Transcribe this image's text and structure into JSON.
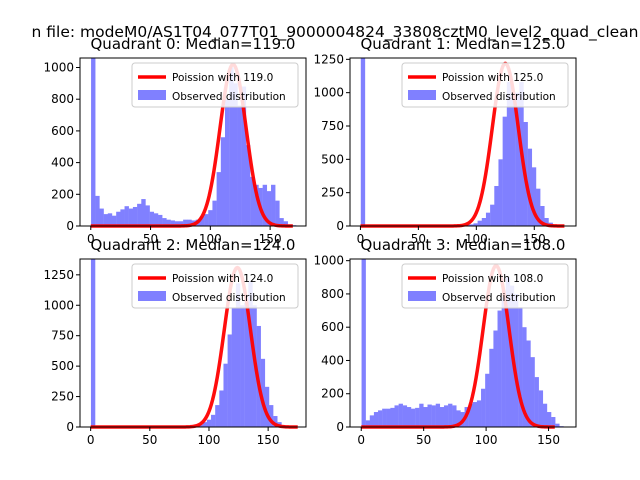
{
  "figure": {
    "suptitle": "n file: modeM0/AS1T04_077T01_9000004824_33808cztM0_level2_quad_clean"
  },
  "colors": {
    "bars": "#8080ff",
    "fit_line": "#ff0000",
    "axes": "#000000",
    "background": "#ffffff"
  },
  "chart_data": [
    {
      "type": "bar",
      "title": "Quadrant 0: Median=119.0",
      "xlabel": "",
      "ylabel": "",
      "xlim": [
        -9,
        180
      ],
      "ylim": [
        0,
        1060
      ],
      "xticks": [
        0,
        50,
        100,
        150
      ],
      "yticks": [
        0,
        200,
        400,
        600,
        800,
        1000
      ],
      "bin_width": 3.5,
      "bars_x": [
        0.25,
        3.75,
        7.25,
        10.75,
        14.25,
        17.75,
        21.25,
        24.75,
        28.25,
        31.75,
        35.25,
        38.75,
        42.25,
        45.75,
        49.25,
        52.75,
        56.25,
        59.75,
        63.25,
        66.75,
        70.25,
        73.75,
        77.25,
        80.75,
        84.25,
        87.75,
        91.25,
        94.75,
        98.25,
        101.75,
        105.25,
        108.75,
        112.25,
        115.75,
        119.25,
        122.75,
        126.25,
        129.75,
        133.25,
        136.75,
        140.25,
        143.75,
        147.25,
        150.75,
        154.25,
        157.75,
        161.25,
        164.75,
        168.25,
        171.75
      ],
      "bars_y": [
        1060,
        190,
        110,
        75,
        80,
        65,
        90,
        105,
        125,
        110,
        120,
        140,
        170,
        130,
        90,
        80,
        70,
        50,
        40,
        35,
        30,
        30,
        40,
        40,
        35,
        40,
        60,
        75,
        100,
        160,
        340,
        560,
        800,
        1000,
        900,
        760,
        880,
        510,
        310,
        260,
        240,
        260,
        220,
        260,
        160,
        50,
        30,
        10,
        5,
        0
      ],
      "fit": {
        "lambda": 119.0,
        "peak": 1020
      },
      "legend": [
        "Poission with 119.0",
        "Observed distribution"
      ]
    },
    {
      "type": "bar",
      "title": "Quadrant 1: Median=125.0",
      "xlabel": "",
      "ylabel": "",
      "xlim": [
        -9,
        186
      ],
      "ylim": [
        0,
        1260
      ],
      "xticks": [
        0,
        50,
        100,
        150
      ],
      "yticks": [
        0,
        250,
        500,
        750,
        1000,
        1250
      ],
      "bin_width": 3.6,
      "bars_x": [
        0.3,
        3.9,
        7.5,
        11.1,
        14.7,
        18.3,
        21.9,
        25.5,
        29.1,
        32.7,
        36.3,
        39.9,
        43.5,
        47.1,
        50.7,
        54.3,
        57.9,
        61.5,
        65.1,
        68.7,
        72.3,
        75.9,
        79.5,
        83.1,
        86.7,
        90.3,
        93.9,
        97.5,
        101.1,
        104.7,
        108.3,
        111.9,
        115.5,
        119.1,
        122.7,
        126.3,
        129.9,
        133.5,
        137.1,
        140.7,
        144.3,
        147.9,
        151.5,
        155.1,
        158.7,
        162.3,
        165.9,
        169.5,
        173.1,
        176.7
      ],
      "bars_y": [
        1260,
        5,
        3,
        3,
        2,
        2,
        2,
        2,
        2,
        2,
        2,
        2,
        2,
        2,
        2,
        2,
        2,
        2,
        2,
        2,
        2,
        3,
        3,
        3,
        5,
        8,
        12,
        20,
        40,
        60,
        100,
        160,
        300,
        500,
        820,
        1080,
        960,
        1000,
        1080,
        780,
        580,
        440,
        280,
        150,
        60,
        25,
        10,
        5,
        2,
        0
      ],
      "fit": {
        "lambda": 125.0,
        "peak": 1220
      },
      "legend": [
        "Poission with 125.0",
        "Observed distribution"
      ]
    },
    {
      "type": "bar",
      "title": "Quadrant 2: Median=124.0",
      "xlabel": "",
      "ylabel": "",
      "xlim": [
        -9,
        182
      ],
      "ylim": [
        0,
        1380
      ],
      "xticks": [
        0,
        50,
        100,
        150
      ],
      "yticks": [
        0,
        250,
        500,
        750,
        1000,
        1250
      ],
      "bin_width": 3.5,
      "bars_x": [
        0.25,
        3.75,
        7.25,
        10.75,
        14.25,
        17.75,
        21.25,
        24.75,
        28.25,
        31.75,
        35.25,
        38.75,
        42.25,
        45.75,
        49.25,
        52.75,
        56.25,
        59.75,
        63.25,
        66.75,
        70.25,
        73.75,
        77.25,
        80.75,
        84.25,
        87.75,
        91.25,
        94.75,
        98.25,
        101.75,
        105.25,
        108.75,
        112.25,
        115.75,
        119.25,
        122.75,
        126.25,
        129.75,
        133.25,
        136.75,
        140.25,
        143.75,
        147.25,
        150.75,
        154.25,
        157.75,
        161.25,
        164.75,
        168.25,
        171.75
      ],
      "bars_y": [
        1380,
        5,
        3,
        3,
        3,
        3,
        2,
        2,
        2,
        2,
        2,
        2,
        2,
        2,
        2,
        2,
        2,
        2,
        2,
        2,
        3,
        3,
        3,
        5,
        8,
        12,
        20,
        40,
        60,
        100,
        180,
        300,
        520,
        760,
        980,
        1180,
        1000,
        1020,
        1200,
        1000,
        830,
        560,
        330,
        180,
        90,
        40,
        15,
        5,
        2,
        0
      ],
      "fit": {
        "lambda": 124.0,
        "peak": 1310
      },
      "legend": [
        "Poission with 124.0",
        "Observed distribution"
      ]
    },
    {
      "type": "bar",
      "title": "Quadrant 3: Median=108.0",
      "xlabel": "",
      "ylabel": "",
      "xlim": [
        -9,
        172
      ],
      "ylim": [
        0,
        1010
      ],
      "xticks": [
        0,
        50,
        100,
        150
      ],
      "yticks": [
        0,
        200,
        400,
        600,
        800,
        1000
      ],
      "bin_width": 3.3,
      "bars_x": [
        0.25,
        3.55,
        6.85,
        10.15,
        13.45,
        16.75,
        20.05,
        23.35,
        26.65,
        29.95,
        33.25,
        36.55,
        39.85,
        43.15,
        46.45,
        49.75,
        53.05,
        56.35,
        59.65,
        62.95,
        66.25,
        69.55,
        72.85,
        76.15,
        79.45,
        82.75,
        86.05,
        89.35,
        92.65,
        95.95,
        99.25,
        102.55,
        105.85,
        109.15,
        112.45,
        115.75,
        119.05,
        122.35,
        125.65,
        128.95,
        132.25,
        135.55,
        138.85,
        142.15,
        145.45,
        148.75,
        152.05,
        155.35,
        158.65,
        161.95
      ],
      "bars_y": [
        1010,
        40,
        70,
        90,
        100,
        110,
        110,
        115,
        130,
        140,
        130,
        120,
        110,
        115,
        140,
        120,
        135,
        130,
        140,
        120,
        130,
        140,
        130,
        100,
        90,
        120,
        140,
        150,
        160,
        230,
        320,
        470,
        580,
        700,
        780,
        900,
        850,
        800,
        720,
        600,
        520,
        420,
        300,
        220,
        140,
        90,
        60,
        20,
        5,
        0
      ],
      "fit": {
        "lambda": 108.0,
        "peak": 970
      },
      "legend": [
        "Poission with 108.0",
        "Observed distribution"
      ]
    }
  ]
}
